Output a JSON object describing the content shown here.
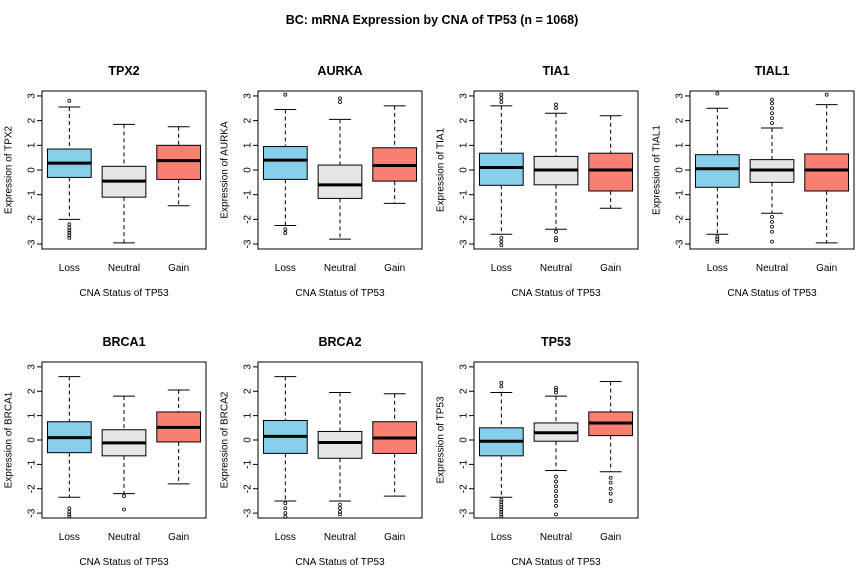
{
  "figure": {
    "title": "BC: mRNA Expression by CNA of TP53 (n = 1068)"
  },
  "colors": {
    "Loss": "#87CEEB",
    "Neutral": "#E6E6E6",
    "Gain": "#FA8072",
    "outline": "#000000"
  },
  "chart_data": [
    {
      "type": "box",
      "title": "TPX2",
      "xlabel": "CNA Status of TP53",
      "ylabel": "Expression of TPX2",
      "categories": [
        "Loss",
        "Neutral",
        "Gain"
      ],
      "ylim": [
        -3.2,
        3.2
      ],
      "yticks": [
        -3,
        -2,
        -1,
        0,
        1,
        2,
        3
      ],
      "boxes": [
        {
          "group": "Loss",
          "whisker_low": -2.0,
          "q1": -0.3,
          "median": 0.28,
          "q3": 0.85,
          "whisker_high": 2.55,
          "outliers": [
            -2.2,
            -2.35,
            -2.45,
            -2.55,
            -2.65,
            -2.75,
            2.8
          ]
        },
        {
          "group": "Neutral",
          "whisker_low": -2.95,
          "q1": -1.1,
          "median": -0.45,
          "q3": 0.15,
          "whisker_high": 1.85,
          "outliers": []
        },
        {
          "group": "Gain",
          "whisker_low": -1.45,
          "q1": -0.38,
          "median": 0.38,
          "q3": 1.0,
          "whisker_high": 1.75,
          "outliers": []
        }
      ]
    },
    {
      "type": "box",
      "title": "AURKA",
      "xlabel": "CNA Status of TP53",
      "ylabel": "Expression of AURKA",
      "categories": [
        "Loss",
        "Neutral",
        "Gain"
      ],
      "ylim": [
        -3.2,
        3.2
      ],
      "yticks": [
        -3,
        -2,
        -1,
        0,
        1,
        2,
        3
      ],
      "boxes": [
        {
          "group": "Loss",
          "whisker_low": -2.25,
          "q1": -0.38,
          "median": 0.4,
          "q3": 0.95,
          "whisker_high": 2.45,
          "outliers": [
            -2.4,
            -2.55,
            3.05
          ]
        },
        {
          "group": "Neutral",
          "whisker_low": -2.8,
          "q1": -1.15,
          "median": -0.6,
          "q3": 0.2,
          "whisker_high": 2.05,
          "outliers": [
            2.75,
            2.9
          ]
        },
        {
          "group": "Gain",
          "whisker_low": -1.35,
          "q1": -0.45,
          "median": 0.18,
          "q3": 0.9,
          "whisker_high": 2.6,
          "outliers": []
        }
      ]
    },
    {
      "type": "box",
      "title": "TIA1",
      "xlabel": "CNA Status of TP53",
      "ylabel": "Expression of TIA1",
      "categories": [
        "Loss",
        "Neutral",
        "Gain"
      ],
      "ylim": [
        -3.2,
        3.2
      ],
      "yticks": [
        -3,
        -2,
        -1,
        0,
        1,
        2,
        3
      ],
      "boxes": [
        {
          "group": "Loss",
          "whisker_low": -2.6,
          "q1": -0.62,
          "median": 0.1,
          "q3": 0.68,
          "whisker_high": 2.6,
          "outliers": [
            -2.75,
            -2.9,
            -3.05,
            2.75,
            2.9,
            3.05
          ]
        },
        {
          "group": "Neutral",
          "whisker_low": -2.4,
          "q1": -0.6,
          "median": 0.0,
          "q3": 0.55,
          "whisker_high": 2.3,
          "outliers": [
            -2.5,
            -2.75,
            -2.85,
            2.5,
            2.65
          ]
        },
        {
          "group": "Gain",
          "whisker_low": -1.55,
          "q1": -0.85,
          "median": 0.0,
          "q3": 0.68,
          "whisker_high": 2.2,
          "outliers": []
        }
      ]
    },
    {
      "type": "box",
      "title": "TIAL1",
      "xlabel": "CNA Status of TP53",
      "ylabel": "Expression of TIAL1",
      "categories": [
        "Loss",
        "Neutral",
        "Gain"
      ],
      "ylim": [
        -3.2,
        3.2
      ],
      "yticks": [
        -3,
        -2,
        -1,
        0,
        1,
        2,
        3
      ],
      "boxes": [
        {
          "group": "Loss",
          "whisker_low": -2.6,
          "q1": -0.7,
          "median": 0.05,
          "q3": 0.62,
          "whisker_high": 2.5,
          "outliers": [
            -2.7,
            -2.8,
            -2.9,
            3.1
          ]
        },
        {
          "group": "Neutral",
          "whisker_low": -1.75,
          "q1": -0.5,
          "median": 0.0,
          "q3": 0.42,
          "whisker_high": 1.7,
          "outliers": [
            -1.9,
            -2.1,
            -2.3,
            -2.5,
            -2.9,
            1.9,
            2.1,
            2.3,
            2.5,
            2.7,
            2.85
          ]
        },
        {
          "group": "Gain",
          "whisker_low": -2.95,
          "q1": -0.85,
          "median": 0.0,
          "q3": 0.65,
          "whisker_high": 2.65,
          "outliers": [
            3.05
          ]
        }
      ]
    },
    {
      "type": "box",
      "title": "BRCA1",
      "xlabel": "CNA Status of TP53",
      "ylabel": "Expression of BRCA1",
      "categories": [
        "Loss",
        "Neutral",
        "Gain"
      ],
      "ylim": [
        -3.2,
        3.2
      ],
      "yticks": [
        -3,
        -2,
        -1,
        0,
        1,
        2,
        3
      ],
      "boxes": [
        {
          "group": "Loss",
          "whisker_low": -2.35,
          "q1": -0.52,
          "median": 0.1,
          "q3": 0.75,
          "whisker_high": 2.6,
          "outliers": [
            -2.8,
            -2.95,
            -3.05,
            -3.15
          ]
        },
        {
          "group": "Neutral",
          "whisker_low": -2.2,
          "q1": -0.65,
          "median": -0.12,
          "q3": 0.42,
          "whisker_high": 1.8,
          "outliers": [
            -2.3,
            -2.85
          ]
        },
        {
          "group": "Gain",
          "whisker_low": -1.8,
          "q1": -0.08,
          "median": 0.52,
          "q3": 1.15,
          "whisker_high": 2.05,
          "outliers": []
        }
      ]
    },
    {
      "type": "box",
      "title": "BRCA2",
      "xlabel": "CNA Status of TP53",
      "ylabel": "Expression of BRCA2",
      "categories": [
        "Loss",
        "Neutral",
        "Gain"
      ],
      "ylim": [
        -3.2,
        3.2
      ],
      "yticks": [
        -3,
        -2,
        -1,
        0,
        1,
        2,
        3
      ],
      "boxes": [
        {
          "group": "Loss",
          "whisker_low": -2.5,
          "q1": -0.55,
          "median": 0.15,
          "q3": 0.8,
          "whisker_high": 2.6,
          "outliers": [
            -2.6,
            -2.8,
            -3.0,
            -3.15
          ]
        },
        {
          "group": "Neutral",
          "whisker_low": -2.5,
          "q1": -0.75,
          "median": -0.1,
          "q3": 0.35,
          "whisker_high": 1.95,
          "outliers": [
            -2.65,
            -2.8,
            -2.95,
            -3.05
          ]
        },
        {
          "group": "Gain",
          "whisker_low": -2.3,
          "q1": -0.55,
          "median": 0.08,
          "q3": 0.75,
          "whisker_high": 1.9,
          "outliers": []
        }
      ]
    },
    {
      "type": "box",
      "title": "TP53",
      "xlabel": "CNA Status of TP53",
      "ylabel": "Expression of TP53",
      "categories": [
        "Loss",
        "Neutral",
        "Gain"
      ],
      "ylim": [
        -3.2,
        3.2
      ],
      "yticks": [
        -3,
        -2,
        -1,
        0,
        1,
        2,
        3
      ],
      "boxes": [
        {
          "group": "Loss",
          "whisker_low": -2.35,
          "q1": -0.65,
          "median": -0.05,
          "q3": 0.5,
          "whisker_high": 1.95,
          "outliers": [
            -2.45,
            -2.55,
            -2.65,
            -2.75,
            -2.85,
            -2.95,
            -3.05,
            -3.15,
            2.2,
            2.35
          ]
        },
        {
          "group": "Neutral",
          "whisker_low": -1.25,
          "q1": -0.05,
          "median": 0.3,
          "q3": 0.7,
          "whisker_high": 1.8,
          "outliers": [
            -1.5,
            -1.7,
            -1.9,
            -2.1,
            -2.3,
            -2.5,
            -2.7,
            -3.05,
            1.95,
            2.05,
            2.15
          ]
        },
        {
          "group": "Gain",
          "whisker_low": -1.3,
          "q1": 0.18,
          "median": 0.7,
          "q3": 1.15,
          "whisker_high": 2.4,
          "outliers": [
            -1.55,
            -1.75,
            -2.0,
            -2.2,
            -2.5
          ]
        }
      ]
    }
  ]
}
